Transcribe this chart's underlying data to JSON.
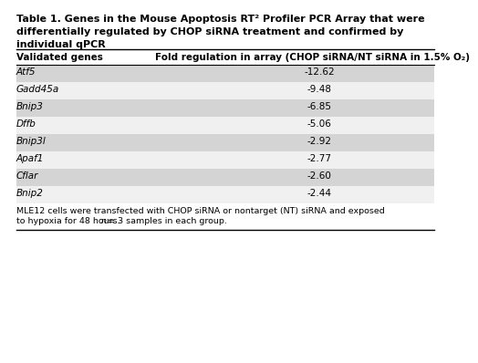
{
  "title_line1": "Table 1. Genes in the Mouse Apoptosis RT² Profiler PCR Array that were",
  "title_line2": "differentially regulated by CHOP siRNA treatment and confirmed by",
  "title_line3": "individual qPCR",
  "col1_header": "Validated genes",
  "col2_header": "Fold regulation in array (CHOP siRNA/NT siRNA in 1.5% O₂)",
  "genes": [
    "Atf5",
    "Gadd45a",
    "Bnip3",
    "Dffb",
    "Bnip3l",
    "Apaf1",
    "Cflar",
    "Bnip2"
  ],
  "values": [
    "-12.62",
    "-9.48",
    "-6.85",
    "-5.06",
    "-2.92",
    "-2.77",
    "-2.60",
    "-2.44"
  ],
  "footer_pre": "MLE12 cells were transfected with CHOP siRNA or nontarget (NT) siRNA and exposed\nto hypoxia for 48 hours. ",
  "footer_n": "n",
  "footer_post": " = 3 samples in each group.",
  "row_colors": [
    "#d4d4d4",
    "#f0f0f0",
    "#d4d4d4",
    "#f0f0f0",
    "#d4d4d4",
    "#f0f0f0",
    "#d4d4d4",
    "#f0f0f0"
  ],
  "bg_color": "#ffffff",
  "text_color": "#000000",
  "border_color": "#000000",
  "title_fontsize": 8.0,
  "header_fontsize": 7.5,
  "body_fontsize": 7.5,
  "footer_fontsize": 6.8
}
